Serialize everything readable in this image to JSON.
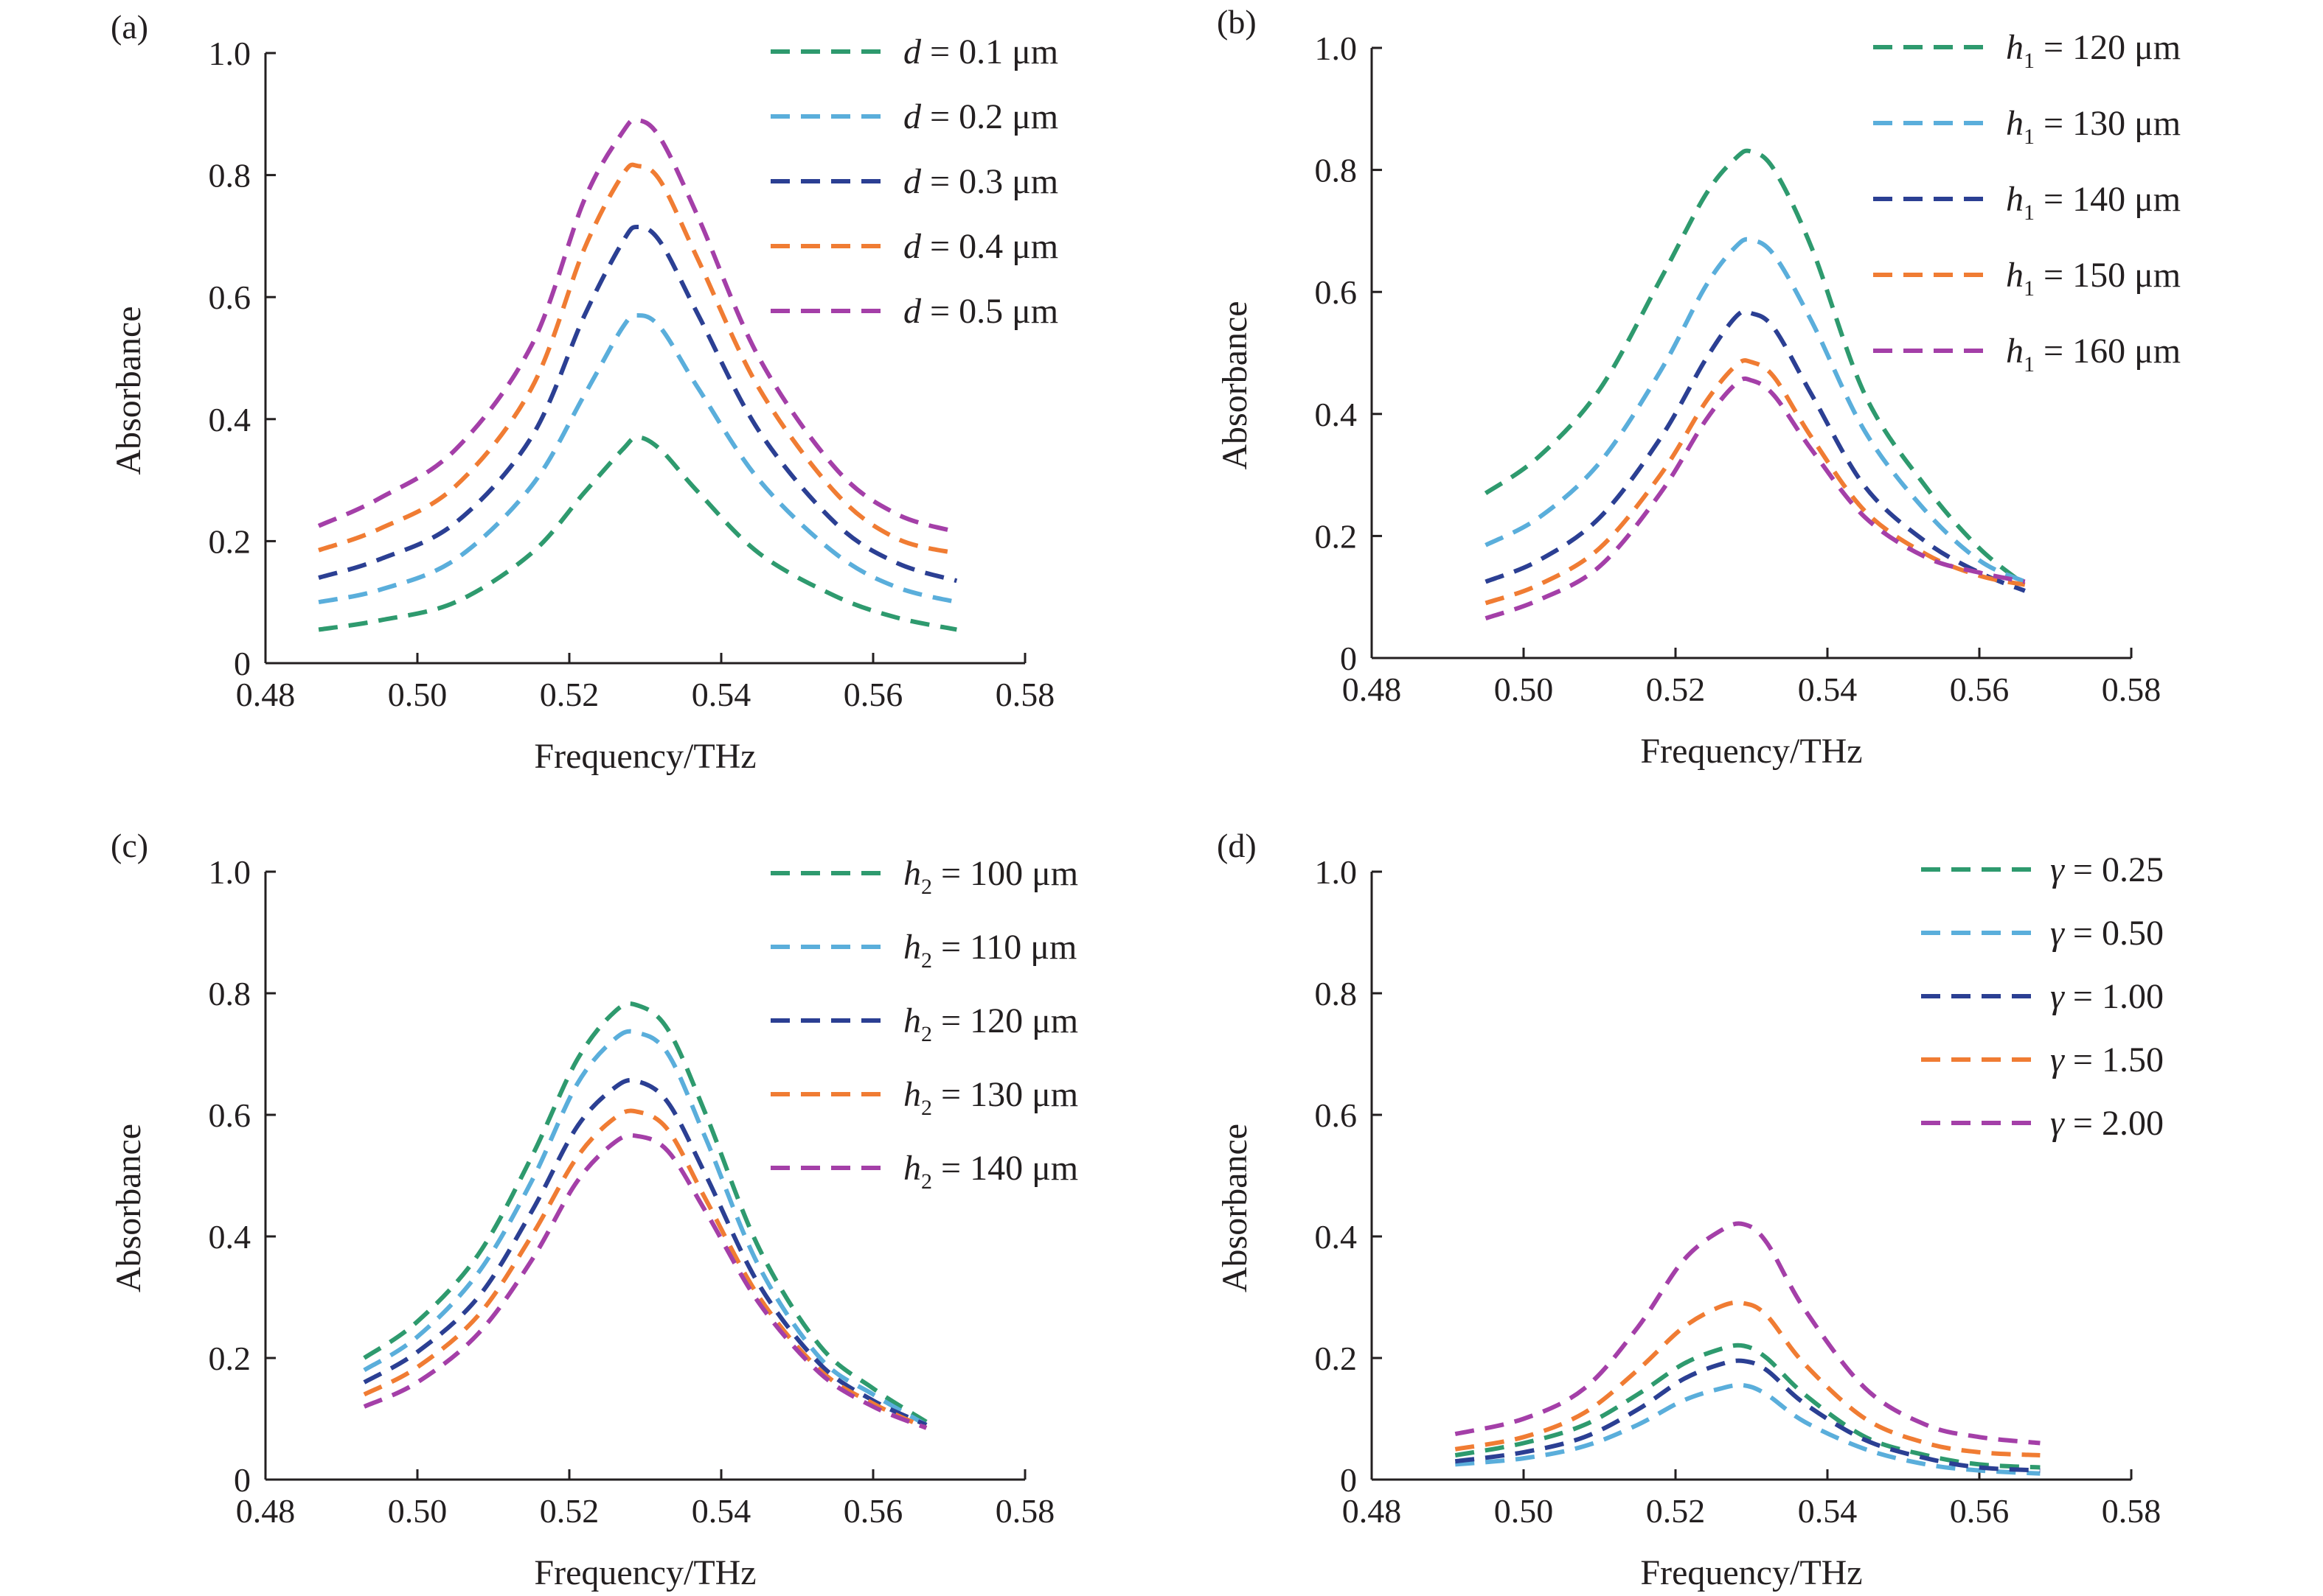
{
  "chart_data": [
    {
      "type": "line",
      "panel_label": "(a)",
      "xlabel": "Frequency/THz",
      "ylabel": "Absorbance",
      "xlim": [
        0.48,
        0.58
      ],
      "ylim": [
        0,
        1.0
      ],
      "x_ticks": [
        "0.48",
        "0.50",
        "0.52",
        "0.54",
        "0.56",
        "0.58"
      ],
      "y_ticks": [
        "0",
        "0.2",
        "0.4",
        "0.6",
        "0.8",
        "1.0"
      ],
      "legend_position": "top-right",
      "grid": false,
      "series": [
        {
          "legend": {
            "symbol": "d",
            "sub": "",
            "value": " = 0.1 μm"
          },
          "color": "#2e9a6e",
          "x": [
            0.487,
            0.495,
            0.505,
            0.515,
            0.522,
            0.527,
            0.529,
            0.532,
            0.537,
            0.545,
            0.555,
            0.563,
            0.571
          ],
          "values": [
            0.055,
            0.07,
            0.1,
            0.18,
            0.28,
            0.35,
            0.37,
            0.35,
            0.28,
            0.18,
            0.11,
            0.075,
            0.055
          ]
        },
        {
          "legend": {
            "symbol": "d",
            "sub": "",
            "value": " = 0.2 μm"
          },
          "color": "#5aaedb",
          "x": [
            0.487,
            0.495,
            0.505,
            0.515,
            0.522,
            0.527,
            0.529,
            0.532,
            0.537,
            0.545,
            0.555,
            0.563,
            0.571
          ],
          "values": [
            0.1,
            0.12,
            0.17,
            0.29,
            0.44,
            0.55,
            0.57,
            0.55,
            0.45,
            0.3,
            0.18,
            0.125,
            0.1
          ]
        },
        {
          "legend": {
            "symbol": "d",
            "sub": "",
            "value": " = 0.3 μm"
          },
          "color": "#2b3f93",
          "x": [
            0.487,
            0.495,
            0.505,
            0.515,
            0.522,
            0.527,
            0.529,
            0.532,
            0.537,
            0.545,
            0.555,
            0.563,
            0.571
          ],
          "values": [
            0.14,
            0.17,
            0.23,
            0.37,
            0.57,
            0.69,
            0.715,
            0.69,
            0.57,
            0.38,
            0.23,
            0.165,
            0.135
          ]
        },
        {
          "legend": {
            "symbol": "d",
            "sub": "",
            "value": " = 0.4 μm"
          },
          "color": "#f07c33",
          "x": [
            0.487,
            0.495,
            0.505,
            0.515,
            0.522,
            0.527,
            0.529,
            0.532,
            0.537,
            0.545,
            0.555,
            0.563,
            0.571
          ],
          "values": [
            0.185,
            0.22,
            0.29,
            0.45,
            0.68,
            0.8,
            0.815,
            0.79,
            0.66,
            0.45,
            0.28,
            0.205,
            0.18
          ]
        },
        {
          "legend": {
            "symbol": "d",
            "sub": "",
            "value": " = 0.5 μm"
          },
          "color": "#a43fa8",
          "x": [
            0.487,
            0.495,
            0.505,
            0.515,
            0.522,
            0.527,
            0.529,
            0.532,
            0.537,
            0.545,
            0.555,
            0.563,
            0.571
          ],
          "values": [
            0.225,
            0.27,
            0.35,
            0.52,
            0.76,
            0.87,
            0.89,
            0.86,
            0.73,
            0.5,
            0.32,
            0.245,
            0.215
          ]
        }
      ]
    },
    {
      "type": "line",
      "panel_label": "(b)",
      "xlabel": "Frequency/THz",
      "ylabel": "Absorbance",
      "xlim": [
        0.48,
        0.58
      ],
      "ylim": [
        0,
        1.0
      ],
      "x_ticks": [
        "0.48",
        "0.50",
        "0.52",
        "0.54",
        "0.56",
        "0.58"
      ],
      "y_ticks": [
        "0",
        "0.2",
        "0.4",
        "0.6",
        "0.8",
        "1.0"
      ],
      "legend_position": "top-right",
      "grid": false,
      "series": [
        {
          "legend": {
            "symbol": "h",
            "sub": "1",
            "value": " = 120 μm"
          },
          "color": "#2e9a6e",
          "x": [
            0.495,
            0.502,
            0.51,
            0.518,
            0.524,
            0.528,
            0.53,
            0.533,
            0.538,
            0.545,
            0.553,
            0.56,
            0.566
          ],
          "values": [
            0.27,
            0.33,
            0.44,
            0.62,
            0.76,
            0.82,
            0.83,
            0.8,
            0.67,
            0.43,
            0.28,
            0.18,
            0.12
          ]
        },
        {
          "legend": {
            "symbol": "h",
            "sub": "1",
            "value": " = 130 μm"
          },
          "color": "#5aaedb",
          "x": [
            0.495,
            0.502,
            0.51,
            0.518,
            0.524,
            0.528,
            0.53,
            0.533,
            0.538,
            0.545,
            0.553,
            0.56,
            0.566
          ],
          "values": [
            0.185,
            0.23,
            0.32,
            0.47,
            0.61,
            0.675,
            0.685,
            0.66,
            0.55,
            0.37,
            0.24,
            0.16,
            0.125
          ]
        },
        {
          "legend": {
            "symbol": "h",
            "sub": "1",
            "value": " = 140 μm"
          },
          "color": "#2b3f93",
          "x": [
            0.495,
            0.502,
            0.51,
            0.518,
            0.524,
            0.528,
            0.53,
            0.533,
            0.538,
            0.545,
            0.553,
            0.56,
            0.566
          ],
          "values": [
            0.125,
            0.16,
            0.23,
            0.36,
            0.49,
            0.56,
            0.565,
            0.54,
            0.43,
            0.28,
            0.19,
            0.14,
            0.11
          ]
        },
        {
          "legend": {
            "symbol": "h",
            "sub": "1",
            "value": " = 150 μm"
          },
          "color": "#f07c33",
          "x": [
            0.495,
            0.502,
            0.51,
            0.518,
            0.524,
            0.528,
            0.53,
            0.533,
            0.538,
            0.545,
            0.553,
            0.56,
            0.566
          ],
          "values": [
            0.09,
            0.12,
            0.18,
            0.3,
            0.42,
            0.48,
            0.485,
            0.46,
            0.36,
            0.24,
            0.17,
            0.135,
            0.12
          ]
        },
        {
          "legend": {
            "symbol": "h",
            "sub": "1",
            "value": " = 160 μm"
          },
          "color": "#a43fa8",
          "x": [
            0.495,
            0.502,
            0.51,
            0.518,
            0.524,
            0.528,
            0.53,
            0.533,
            0.538,
            0.545,
            0.553,
            0.56,
            0.566
          ],
          "values": [
            0.065,
            0.095,
            0.15,
            0.27,
            0.39,
            0.45,
            0.455,
            0.43,
            0.34,
            0.23,
            0.165,
            0.14,
            0.125
          ]
        }
      ]
    },
    {
      "type": "line",
      "panel_label": "(c)",
      "xlabel": "Frequency/THz",
      "ylabel": "Absorbance",
      "xlim": [
        0.48,
        0.58
      ],
      "ylim": [
        0,
        1.0
      ],
      "x_ticks": [
        "0.48",
        "0.50",
        "0.52",
        "0.54",
        "0.56",
        "0.58"
      ],
      "y_ticks": [
        "0",
        "0.2",
        "0.4",
        "0.6",
        "0.8",
        "1.0"
      ],
      "legend_position": "top-right",
      "grid": false,
      "series": [
        {
          "legend": {
            "symbol": "h",
            "sub": "2",
            "value": " = 100 μm"
          },
          "color": "#2e9a6e",
          "x": [
            0.493,
            0.5,
            0.508,
            0.515,
            0.521,
            0.526,
            0.529,
            0.533,
            0.538,
            0.545,
            0.553,
            0.56,
            0.567
          ],
          "values": [
            0.2,
            0.26,
            0.37,
            0.53,
            0.69,
            0.77,
            0.78,
            0.74,
            0.6,
            0.38,
            0.22,
            0.15,
            0.095
          ]
        },
        {
          "legend": {
            "symbol": "h",
            "sub": "2",
            "value": " = 110 μm"
          },
          "color": "#5aaedb",
          "x": [
            0.493,
            0.5,
            0.508,
            0.515,
            0.521,
            0.526,
            0.529,
            0.533,
            0.538,
            0.545,
            0.553,
            0.56,
            0.567
          ],
          "values": [
            0.18,
            0.235,
            0.34,
            0.49,
            0.65,
            0.725,
            0.735,
            0.7,
            0.56,
            0.35,
            0.2,
            0.14,
            0.09
          ]
        },
        {
          "legend": {
            "symbol": "h",
            "sub": "2",
            "value": " = 120 μm"
          },
          "color": "#2b3f93",
          "x": [
            0.493,
            0.5,
            0.508,
            0.515,
            0.521,
            0.526,
            0.529,
            0.533,
            0.538,
            0.545,
            0.553,
            0.56,
            0.567
          ],
          "values": [
            0.16,
            0.21,
            0.3,
            0.44,
            0.58,
            0.645,
            0.655,
            0.62,
            0.5,
            0.32,
            0.19,
            0.13,
            0.09
          ]
        },
        {
          "legend": {
            "symbol": "h",
            "sub": "2",
            "value": " = 130 μm"
          },
          "color": "#f07c33",
          "x": [
            0.493,
            0.5,
            0.508,
            0.515,
            0.521,
            0.526,
            0.529,
            0.533,
            0.538,
            0.545,
            0.553,
            0.56,
            0.567
          ],
          "values": [
            0.14,
            0.185,
            0.27,
            0.4,
            0.53,
            0.595,
            0.605,
            0.575,
            0.46,
            0.3,
            0.18,
            0.125,
            0.085
          ]
        },
        {
          "legend": {
            "symbol": "h",
            "sub": "2",
            "value": " = 140 μm"
          },
          "color": "#a43fa8",
          "x": [
            0.493,
            0.5,
            0.508,
            0.515,
            0.521,
            0.526,
            0.529,
            0.533,
            0.538,
            0.545,
            0.553,
            0.56,
            0.567
          ],
          "values": [
            0.12,
            0.16,
            0.24,
            0.36,
            0.49,
            0.555,
            0.565,
            0.54,
            0.44,
            0.29,
            0.175,
            0.12,
            0.085
          ]
        }
      ]
    },
    {
      "type": "line",
      "panel_label": "(d)",
      "xlabel": "Frequency/THz",
      "ylabel": "Absorbance",
      "xlim": [
        0.48,
        0.58
      ],
      "ylim": [
        0,
        1.0
      ],
      "x_ticks": [
        "0.48",
        "0.50",
        "0.52",
        "0.54",
        "0.56",
        "0.58"
      ],
      "y_ticks": [
        "0",
        "0.2",
        "0.4",
        "0.6",
        "0.8",
        "1.0"
      ],
      "legend_position": "top-right",
      "grid": false,
      "series": [
        {
          "legend": {
            "symbol": "γ",
            "sub": "",
            "value": " = 0.25"
          },
          "color": "#2e9a6e",
          "x": [
            0.491,
            0.5,
            0.508,
            0.515,
            0.521,
            0.526,
            0.529,
            0.532,
            0.537,
            0.545,
            0.553,
            0.56,
            0.568
          ],
          "values": [
            0.04,
            0.06,
            0.09,
            0.14,
            0.19,
            0.215,
            0.22,
            0.2,
            0.14,
            0.07,
            0.04,
            0.025,
            0.02
          ]
        },
        {
          "legend": {
            "symbol": "γ",
            "sub": "",
            "value": " = 0.50"
          },
          "color": "#5aaedb",
          "x": [
            0.491,
            0.5,
            0.508,
            0.515,
            0.521,
            0.526,
            0.529,
            0.532,
            0.537,
            0.545,
            0.553,
            0.56,
            0.568
          ],
          "values": [
            0.025,
            0.035,
            0.055,
            0.09,
            0.13,
            0.15,
            0.155,
            0.14,
            0.095,
            0.05,
            0.025,
            0.015,
            0.01
          ]
        },
        {
          "legend": {
            "symbol": "γ",
            "sub": "",
            "value": " = 1.00"
          },
          "color": "#2b3f93",
          "x": [
            0.491,
            0.5,
            0.508,
            0.515,
            0.521,
            0.526,
            0.529,
            0.532,
            0.537,
            0.545,
            0.553,
            0.56,
            0.568
          ],
          "values": [
            0.03,
            0.045,
            0.07,
            0.115,
            0.165,
            0.19,
            0.195,
            0.18,
            0.125,
            0.065,
            0.035,
            0.02,
            0.015
          ]
        },
        {
          "legend": {
            "symbol": "γ",
            "sub": "",
            "value": " = 1.50"
          },
          "color": "#f07c33",
          "x": [
            0.491,
            0.5,
            0.508,
            0.515,
            0.521,
            0.526,
            0.529,
            0.532,
            0.537,
            0.545,
            0.553,
            0.56,
            0.568
          ],
          "values": [
            0.05,
            0.07,
            0.11,
            0.18,
            0.25,
            0.285,
            0.29,
            0.27,
            0.19,
            0.1,
            0.06,
            0.045,
            0.04
          ]
        },
        {
          "legend": {
            "symbol": "γ",
            "sub": "",
            "value": " = 2.00"
          },
          "color": "#a43fa8",
          "x": [
            0.491,
            0.5,
            0.508,
            0.515,
            0.521,
            0.526,
            0.529,
            0.532,
            0.537,
            0.545,
            0.553,
            0.56,
            0.568
          ],
          "values": [
            0.075,
            0.1,
            0.15,
            0.25,
            0.36,
            0.41,
            0.42,
            0.39,
            0.28,
            0.15,
            0.09,
            0.07,
            0.06
          ]
        }
      ]
    }
  ]
}
